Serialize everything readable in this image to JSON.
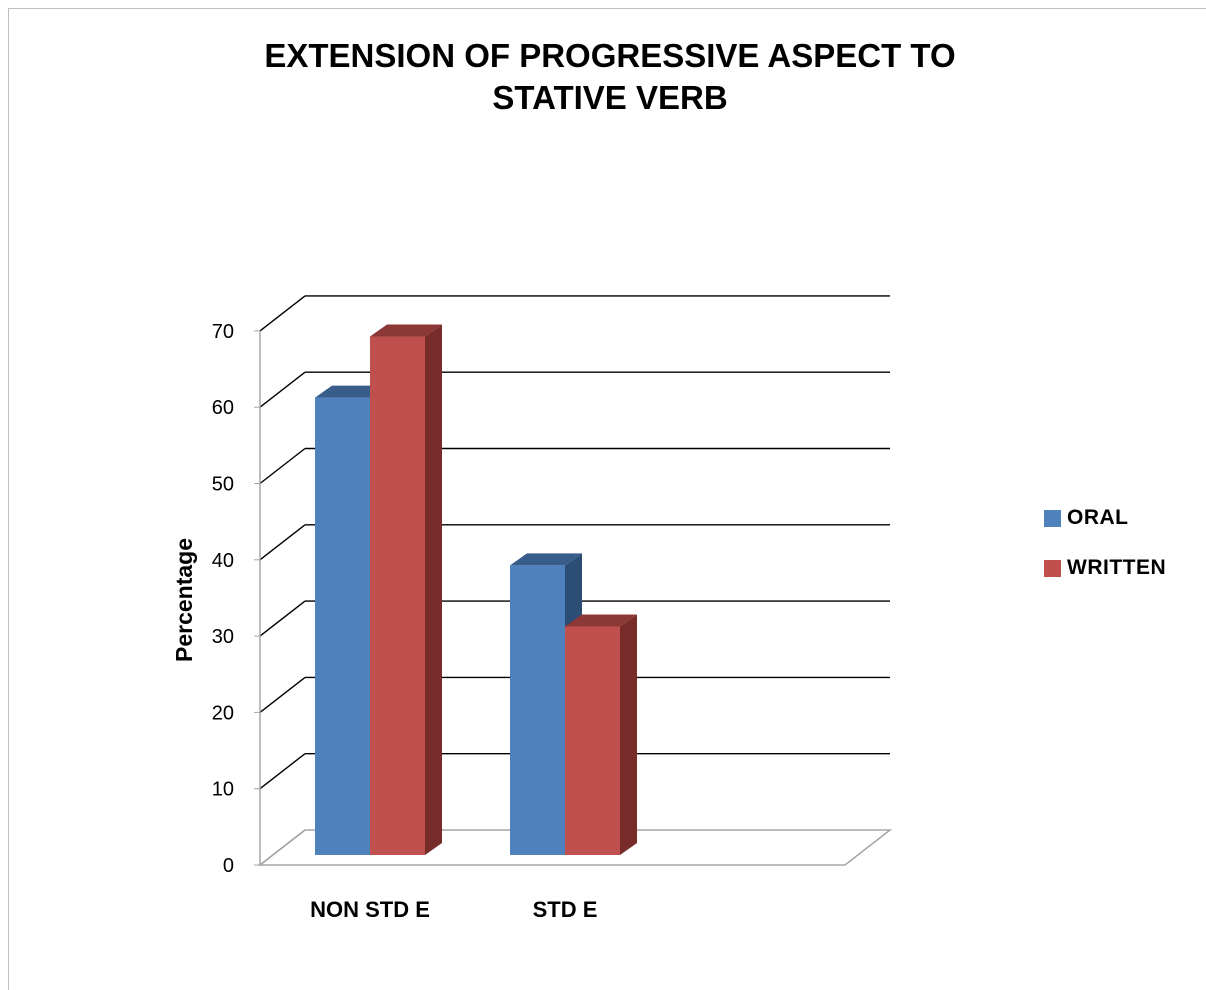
{
  "chart_data": {
    "type": "bar",
    "title_lines": [
      "EXTENSION OF PROGRESSIVE ASPECT TO",
      "STATIVE  VERB"
    ],
    "xlabel": "",
    "ylabel": "Percentage",
    "categories": [
      "NON STD E",
      "STD E"
    ],
    "series": [
      {
        "name": "ORAL",
        "values": [
          61,
          39
        ],
        "color": "#4f81bd",
        "side_color": "#2c4d75",
        "top_color": "#385d8a"
      },
      {
        "name": "WRITTEN",
        "values": [
          69,
          31
        ],
        "color": "#c0504d",
        "side_color": "#772c2a",
        "top_color": "#8c3836"
      }
    ],
    "ylim": [
      0,
      70
    ],
    "yticks": [
      "0",
      "10",
      "20",
      "30",
      "40",
      "50",
      "60",
      "70"
    ],
    "grid": true,
    "legend_position": "right",
    "style": "3d-clustered-column"
  }
}
